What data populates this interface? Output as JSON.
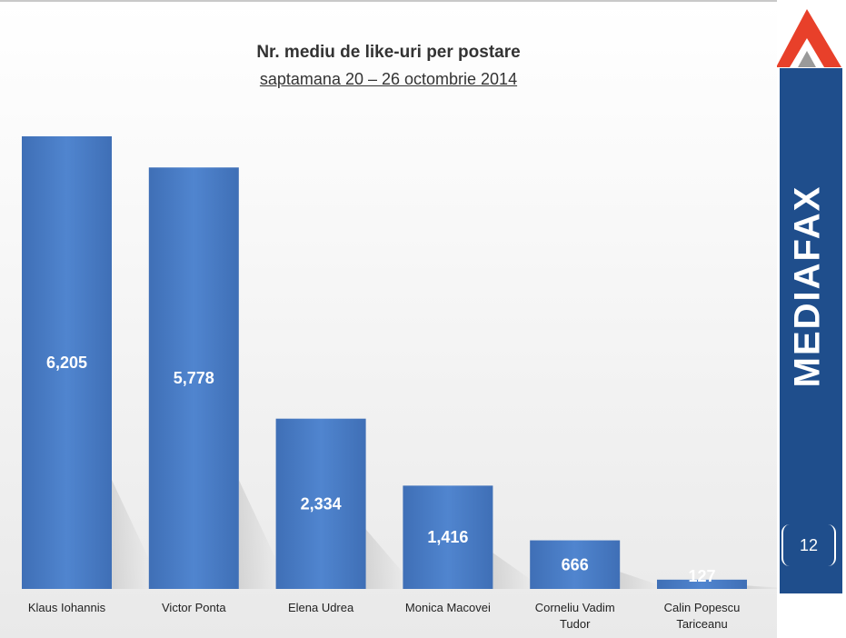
{
  "slide": {
    "title": "Nr. mediu de like-uri per postare",
    "subtitle": "saptamana 20 – 26 octombrie 2014",
    "page_number": "12"
  },
  "branding": {
    "name": "MEDIAFAX",
    "colors": {
      "band": "#1f4e8c",
      "logo_red": "#e8402a",
      "bar": "#4a7cc4"
    }
  },
  "chart_data": {
    "type": "bar",
    "categories": [
      [
        "Klaus Iohannis"
      ],
      [
        "Victor Ponta"
      ],
      [
        "Elena Udrea"
      ],
      [
        "Monica Macovei"
      ],
      [
        "Corneliu Vadim",
        "Tudor"
      ],
      [
        "Calin Popescu",
        "Tariceanu"
      ]
    ],
    "values": [
      6205,
      5778,
      2334,
      1416,
      666,
      127
    ],
    "value_labels": [
      "6,205",
      "5,778",
      "2,334",
      "1,416",
      "666",
      "127"
    ],
    "ylim": [
      0,
      6205
    ],
    "grid": false,
    "legend": false
  }
}
